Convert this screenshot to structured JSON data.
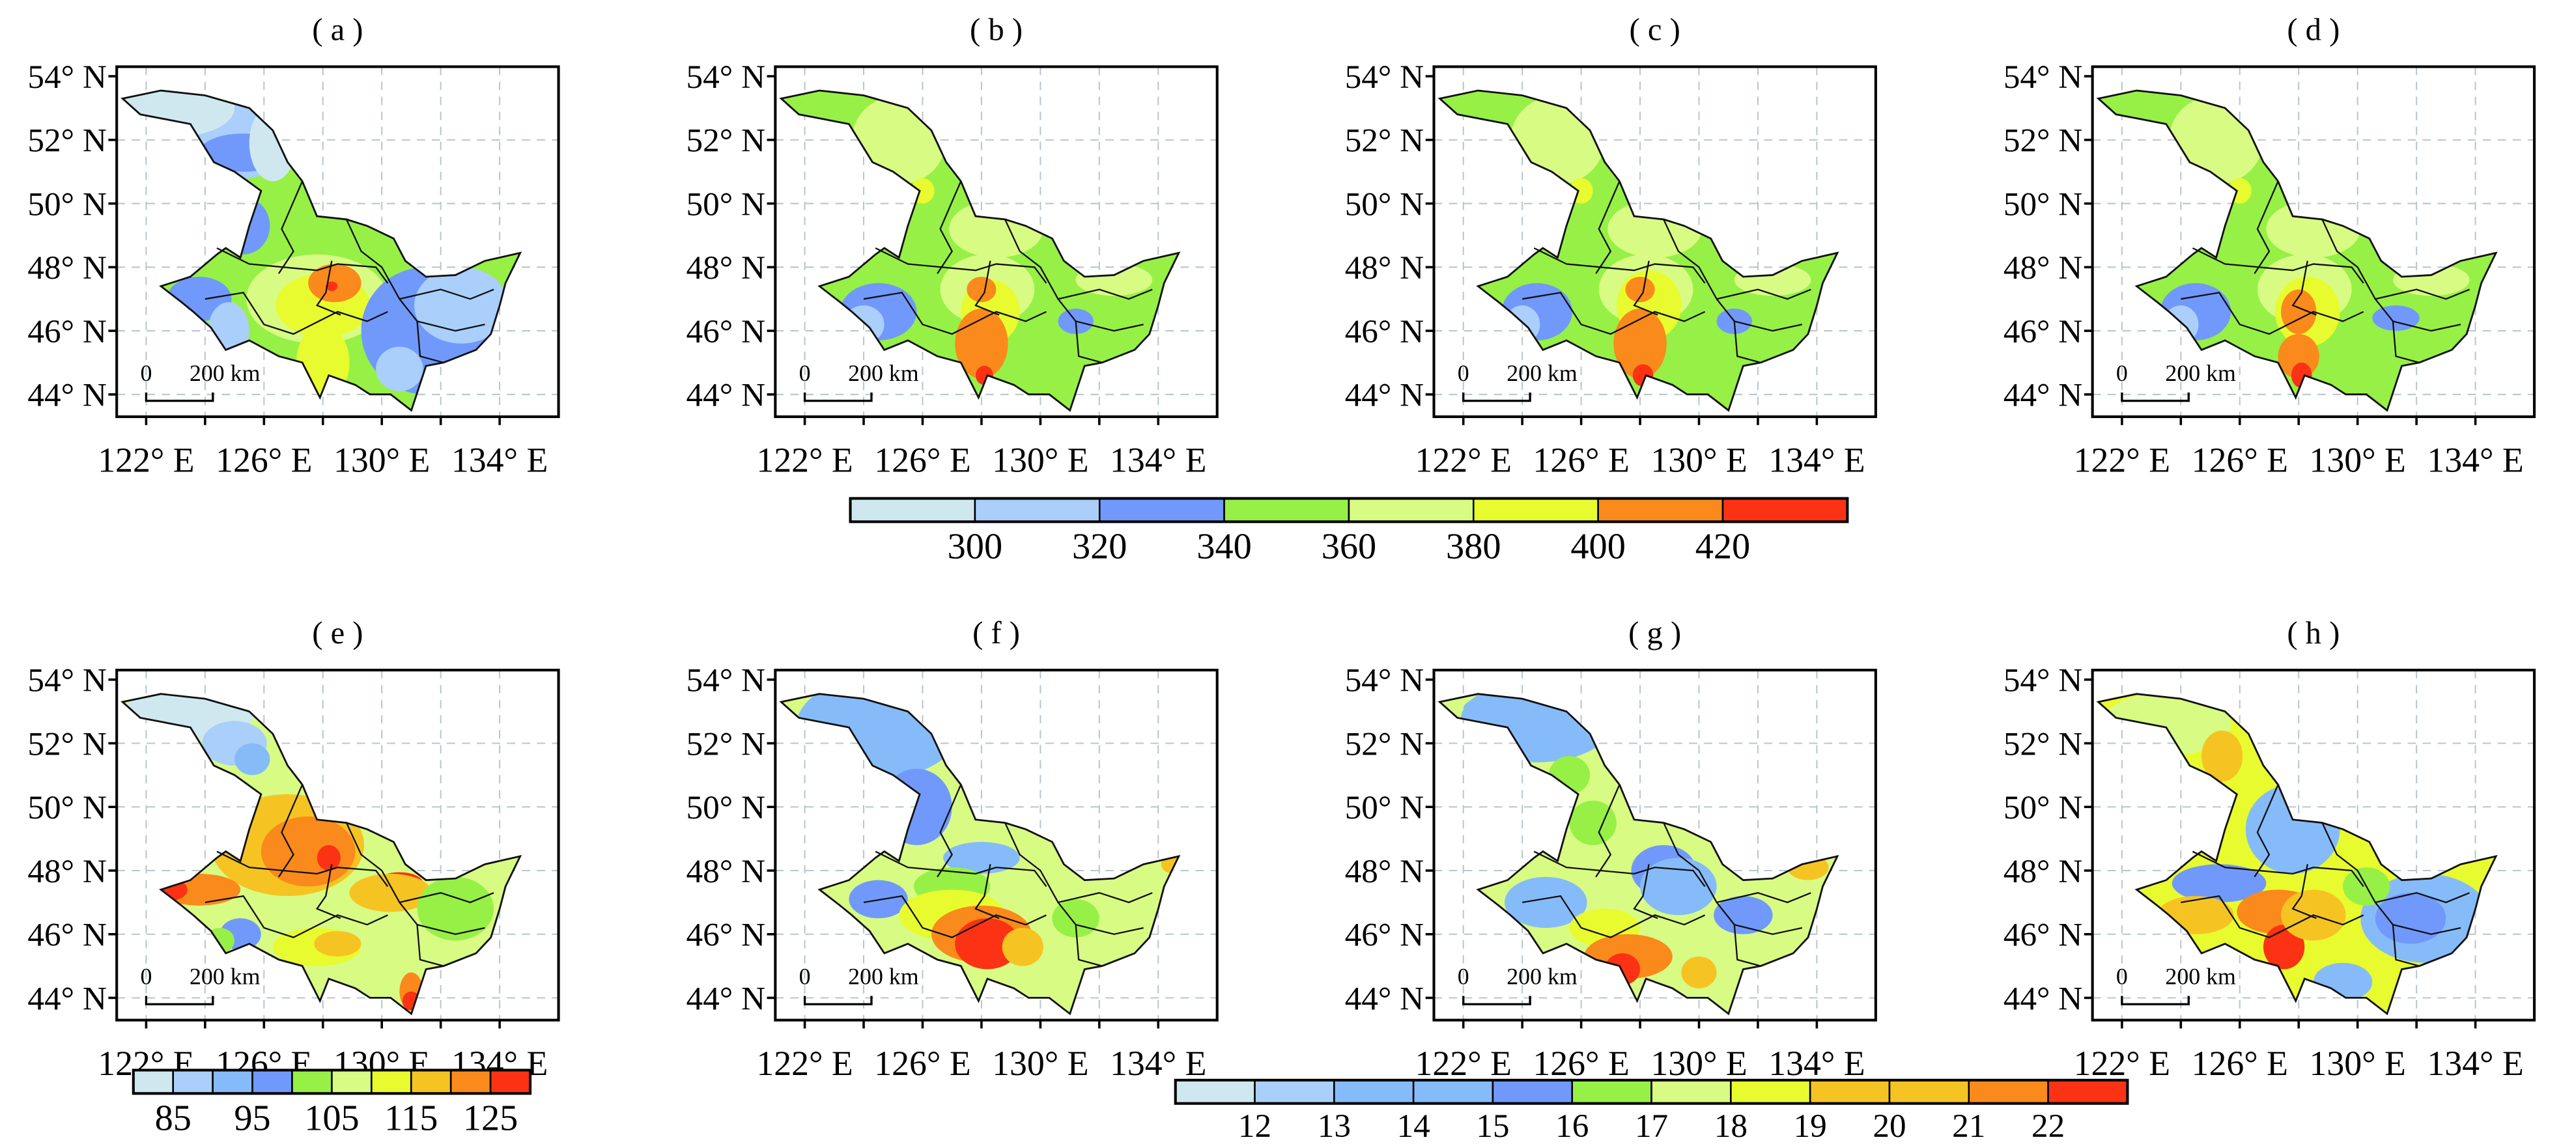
{
  "panels": [
    {
      "label": "( a )",
      "scale_bar": {
        "zero": "0",
        "dist": "200 km"
      },
      "colorbar": "top"
    },
    {
      "label": "( b )",
      "scale_bar": {
        "zero": "0",
        "dist": "200 km"
      },
      "colorbar": "top"
    },
    {
      "label": "( c )",
      "scale_bar": {
        "zero": "0",
        "dist": "200 km"
      },
      "colorbar": "top"
    },
    {
      "label": "( d )",
      "scale_bar": {
        "zero": "0",
        "dist": "200 km"
      },
      "colorbar": "top"
    },
    {
      "label": "( e )",
      "scale_bar": {
        "zero": "0",
        "dist": "200 km"
      },
      "colorbar": "bottom_left"
    },
    {
      "label": "( f )",
      "scale_bar": {
        "zero": "0",
        "dist": "200 km"
      },
      "colorbar": "bottom_right"
    },
    {
      "label": "( g )",
      "scale_bar": {
        "zero": "0",
        "dist": "200 km"
      },
      "colorbar": "bottom_right"
    },
    {
      "label": "( h )",
      "scale_bar": {
        "zero": "0",
        "dist": "200 km"
      },
      "colorbar": "bottom_right"
    }
  ],
  "axes": {
    "lat_ticks": [
      "54° N",
      "52° N",
      "50° N",
      "48° N",
      "46° N",
      "44° N"
    ],
    "lat_values": [
      54,
      52,
      50,
      48,
      46,
      44
    ],
    "lon_ticks": [
      "122° E",
      "126° E",
      "130° E",
      "134° E"
    ],
    "lon_values": [
      122,
      126,
      130,
      134
    ],
    "lon_grid": [
      122,
      124,
      126,
      128,
      130,
      132,
      134
    ],
    "lat_grid": [
      44,
      46,
      48,
      50,
      52
    ]
  },
  "colorbars": {
    "top": {
      "colors": [
        "#cfe8f0",
        "#a9cffa",
        "#7099fb",
        "#97f046",
        "#d8fb84",
        "#e8fb2e",
        "#fa8a1b",
        "#fb3214"
      ],
      "labels": [
        "300",
        "320",
        "340",
        "360",
        "380",
        "400",
        "420"
      ],
      "label_boundaries": [
        1,
        2,
        3,
        4,
        5,
        6,
        7
      ]
    },
    "bottom_left": {
      "colors": [
        "#cfe8f0",
        "#a9cffa",
        "#86bbf9",
        "#7099fb",
        "#97f046",
        "#d8fb84",
        "#e8fb2e",
        "#f5c423",
        "#fa8a1b",
        "#fb3214"
      ],
      "labels": [
        "85",
        "95",
        "105",
        "115",
        "125"
      ],
      "label_boundaries": [
        1,
        3,
        5,
        7,
        9
      ]
    },
    "bottom_right": {
      "colors": [
        "#cfe8f0",
        "#a9cffa",
        "#86bbf9",
        "#86bbf9",
        "#7099fb",
        "#97f046",
        "#d8fb84",
        "#e8fb2e",
        "#f5c423",
        "#f5c423",
        "#fa8a1b",
        "#fb3214"
      ],
      "labels": [
        "12",
        "13",
        "14",
        "15",
        "16",
        "17",
        "18",
        "19",
        "20",
        "21",
        "22"
      ],
      "label_boundaries": [
        1,
        2,
        3,
        4,
        5,
        6,
        7,
        8,
        9,
        10,
        11
      ]
    }
  }
}
